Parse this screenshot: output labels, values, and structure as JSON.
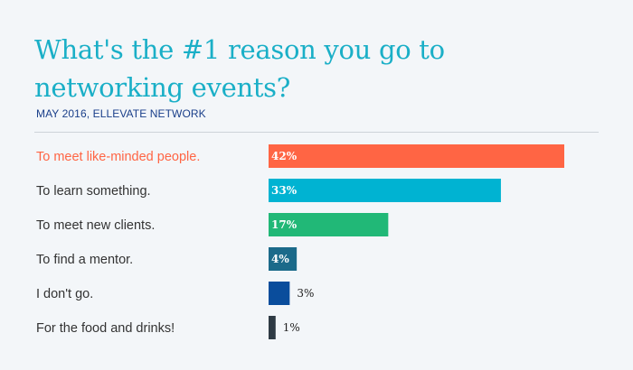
{
  "chart_data": {
    "type": "bar",
    "orientation": "horizontal",
    "title": "What's the #1 reason you go to networking events?",
    "subtitle": "MAY 2016, ELLEVATE NETWORK",
    "categories": [
      "To meet like-minded people.",
      "To learn something.",
      "To meet new clients.",
      "To find a mentor.",
      "I don't go.",
      "For the food and drinks!"
    ],
    "values": [
      42,
      33,
      17,
      4,
      3,
      1
    ],
    "value_labels": [
      "42%",
      "33%",
      "17%",
      "4%",
      "3%",
      "1%"
    ],
    "bar_colors": [
      "#ff6544",
      "#00b3d2",
      "#21b877",
      "#1b6a8a",
      "#0a4d9c",
      "#2e3a44"
    ],
    "highlight_label_color": "#ff6544",
    "label_color": "#333333",
    "xlim": [
      0,
      42
    ]
  },
  "colors": {
    "background": "#f3f6f9",
    "title": "#1aafc7",
    "subtitle": "#1a3f8a"
  }
}
